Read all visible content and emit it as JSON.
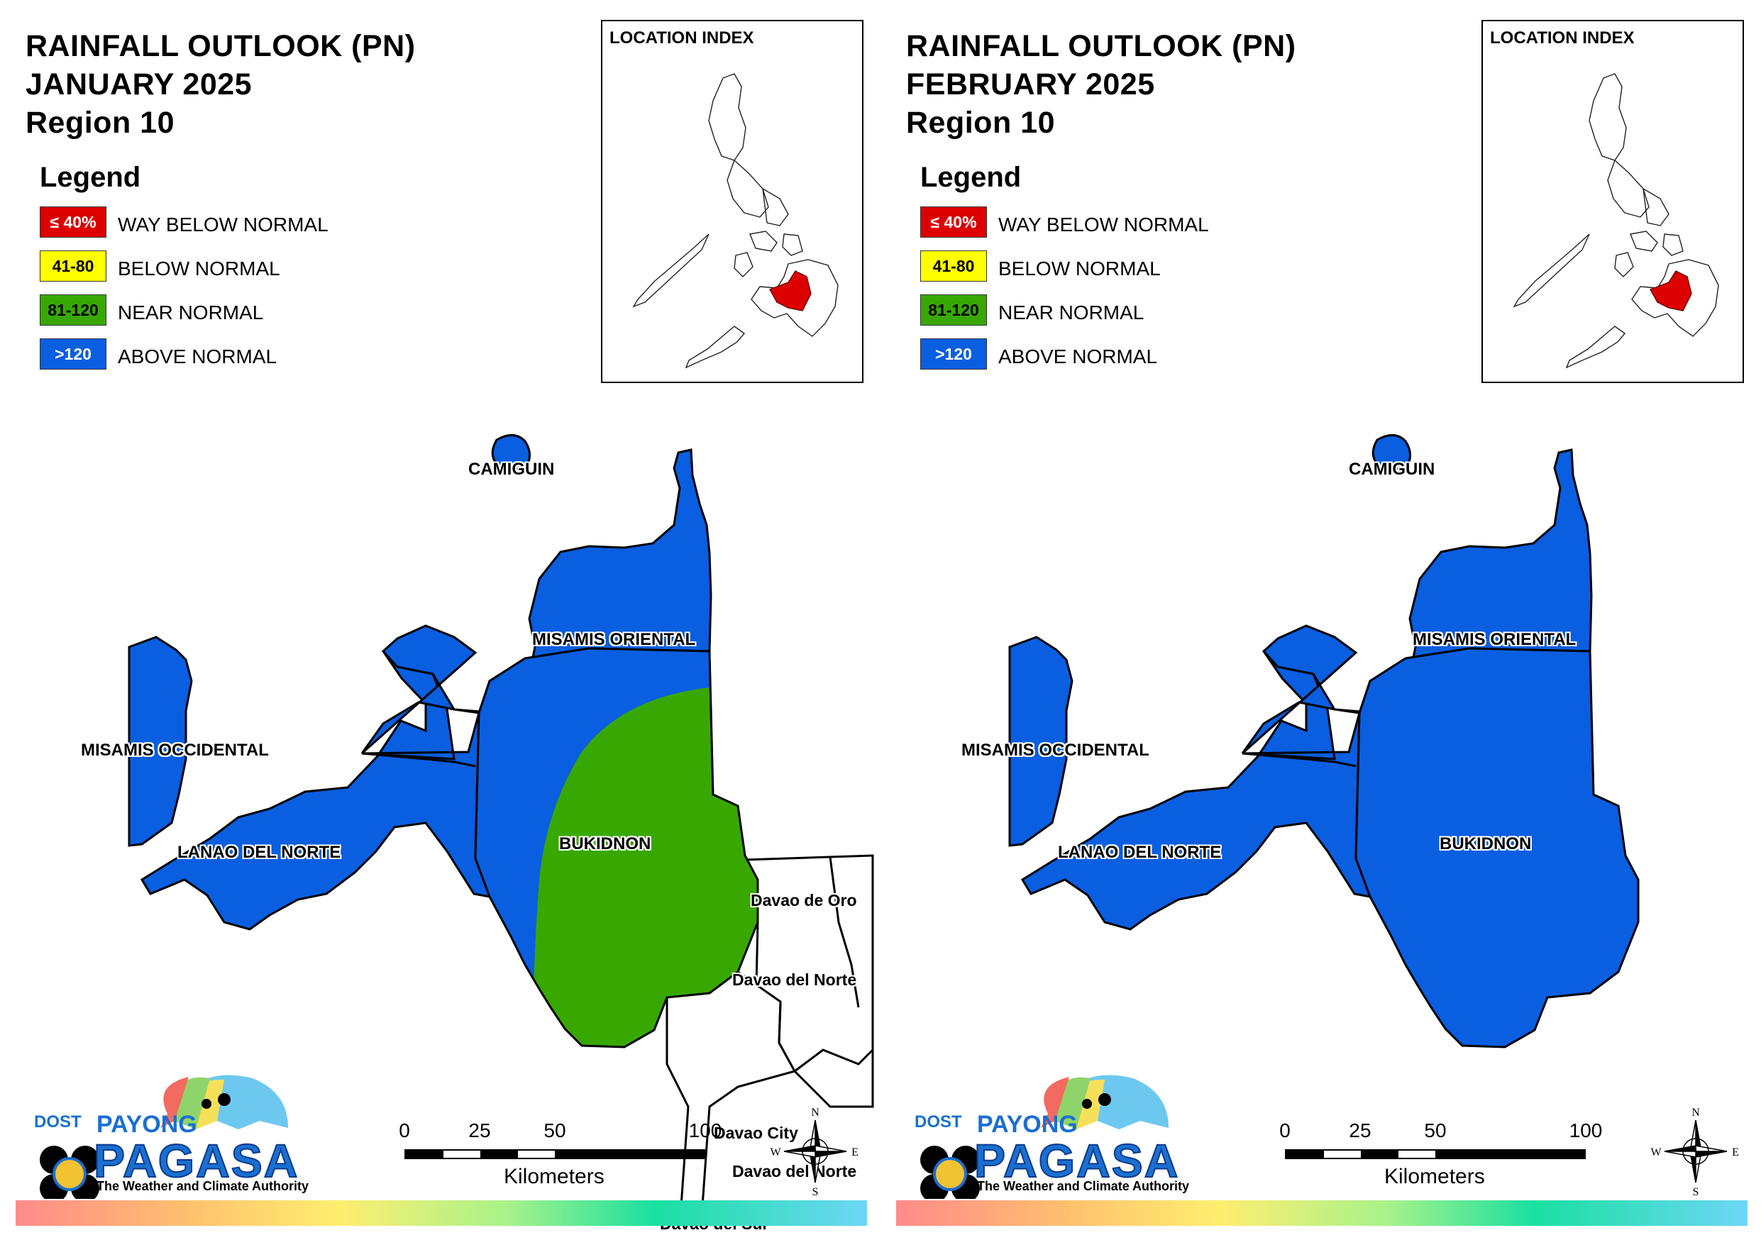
{
  "colors": {
    "way_below": "#dd0000",
    "below": "#ffff00",
    "near": "#38a800",
    "above": "#0a5ee0"
  },
  "legend": {
    "title": "Legend",
    "items": [
      {
        "swatch": "≤ 40%",
        "label": "WAY BELOW NORMAL",
        "color": "#dd0000",
        "text_color": "#ffffff"
      },
      {
        "swatch": "41-80",
        "label": "BELOW NORMAL",
        "color": "#ffff00",
        "text_color": "#000000"
      },
      {
        "swatch": "81-120",
        "label": "NEAR NORMAL",
        "color": "#38a800",
        "text_color": "#000000"
      },
      {
        "swatch": ">120",
        "label": "ABOVE NORMAL",
        "color": "#0a5ee0",
        "text_color": "#ffffff"
      }
    ]
  },
  "inset": {
    "title": "LOCATION INDEX"
  },
  "scalebar": {
    "ticks": [
      "0",
      "25",
      "50",
      "100"
    ],
    "unit": "Kilometers"
  },
  "compass": {
    "n": "N",
    "s": "S",
    "e": "E",
    "w": "W"
  },
  "logo": {
    "dost": "DOST",
    "payong": "PAYONG",
    "pagasa": "PAGASA",
    "tagline": "The Weather and Climate Authority"
  },
  "panels": [
    {
      "title_line1": "RAINFALL OUTLOOK (PN)",
      "title_line2": "JANUARY 2025",
      "title_line3": "Region 10",
      "provinces": {
        "camiguin": {
          "label": "CAMIGUIN",
          "category": "above"
        },
        "misamis_oriental": {
          "label": "MISAMIS ORIENTAL",
          "category": "above"
        },
        "misamis_occidental": {
          "label": "MISAMIS OCCIDENTAL",
          "category": "above"
        },
        "lanao_del_norte": {
          "label": "LANAO DEL NORTE",
          "category": "above"
        },
        "bukidnon": {
          "label": "BUKIDNON",
          "category": "above and near normal"
        }
      },
      "neighbors": [
        "Davao de Oro",
        "Davao del Norte",
        "Davao City",
        "Davao del Norte",
        "Davao del Sur"
      ]
    },
    {
      "title_line1": "RAINFALL OUTLOOK (PN)",
      "title_line2": "FEBRUARY 2025",
      "title_line3": "Region 10",
      "provinces": {
        "camiguin": {
          "label": "CAMIGUIN",
          "category": "above"
        },
        "misamis_oriental": {
          "label": "MISAMIS ORIENTAL",
          "category": "above"
        },
        "misamis_occidental": {
          "label": "MISAMIS OCCIDENTAL",
          "category": "above"
        },
        "lanao_del_norte": {
          "label": "LANAO DEL NORTE",
          "category": "above"
        },
        "bukidnon": {
          "label": "BUKIDNON",
          "category": "above"
        }
      },
      "neighbors": []
    }
  ]
}
